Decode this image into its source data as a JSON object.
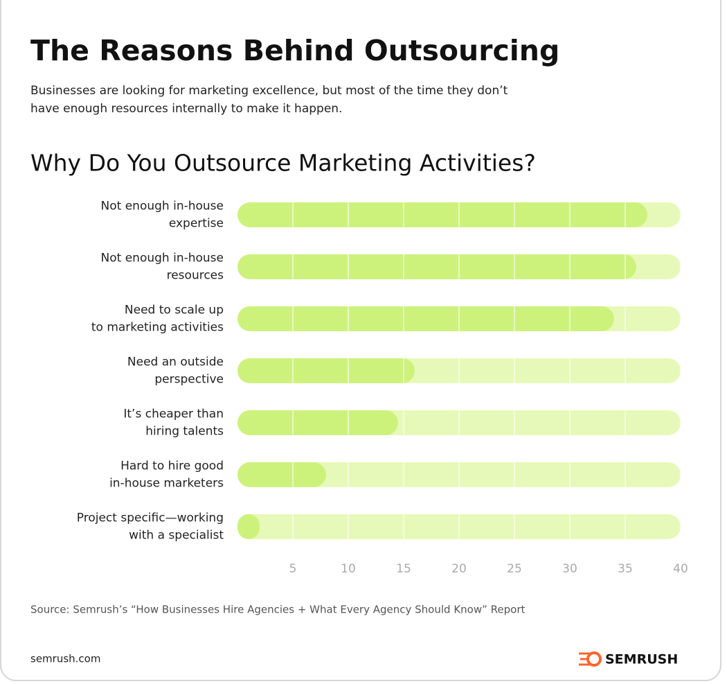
{
  "header": {
    "title": "The Reasons Behind Outsourcing",
    "subtitle": [
      "Businesses are looking for marketing excellence, but most of the time they don’t",
      "have enough resources internally to make it happen."
    ]
  },
  "chart_data": {
    "type": "bar",
    "orientation": "horizontal",
    "title": "Why Do You Outsource Marketing Activities?",
    "categories": [
      "Not enough in-house\nexpertise",
      "Not enough in-house\nresources",
      "Need to scale up\nto marketing activities",
      "Need an outside\nperspective",
      "It’s cheaper than\nhiring talents",
      "Hard to hire good\nin-house marketers",
      "Project specific—working\nwith a specialist"
    ],
    "values": [
      37,
      36,
      34,
      16,
      14.5,
      8,
      2
    ],
    "color": "#cdf27c",
    "track_color": "#e7f9b8",
    "xlim": [
      0,
      40
    ],
    "xticks": [
      5,
      10,
      15,
      20,
      25,
      30,
      35,
      40
    ],
    "grid": true,
    "source": "Source: Semrush’s “How Businesses Hire Agencies + What Every Agency Should Know” Report"
  },
  "footer": {
    "site": "semrush.com",
    "brand": "SEMRUSH"
  }
}
